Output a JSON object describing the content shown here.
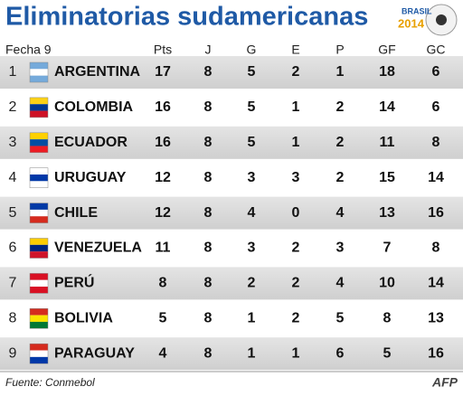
{
  "title": "Eliminatorias sudamericanas",
  "logo": {
    "line1": "BRASIL",
    "line2": "2014"
  },
  "table": {
    "round": "Fecha 9",
    "columns": [
      "Pts",
      "J",
      "G",
      "E",
      "P",
      "GF",
      "GC"
    ],
    "rows": [
      {
        "rank": 1,
        "team": "ARGENTINA",
        "stats": [
          17,
          8,
          5,
          2,
          1,
          18,
          6
        ]
      },
      {
        "rank": 2,
        "team": "COLOMBIA",
        "stats": [
          16,
          8,
          5,
          1,
          2,
          14,
          6
        ]
      },
      {
        "rank": 3,
        "team": "ECUADOR",
        "stats": [
          16,
          8,
          5,
          1,
          2,
          11,
          8
        ]
      },
      {
        "rank": 4,
        "team": "URUGUAY",
        "stats": [
          12,
          8,
          3,
          3,
          2,
          15,
          14
        ]
      },
      {
        "rank": 5,
        "team": "CHILE",
        "stats": [
          12,
          8,
          4,
          0,
          4,
          13,
          16
        ]
      },
      {
        "rank": 6,
        "team": "VENEZUELA",
        "stats": [
          11,
          8,
          3,
          2,
          3,
          7,
          8
        ]
      },
      {
        "rank": 7,
        "team": "PERÚ",
        "stats": [
          8,
          8,
          2,
          2,
          4,
          10,
          14
        ]
      },
      {
        "rank": 8,
        "team": "BOLIVIA",
        "stats": [
          5,
          8,
          1,
          2,
          5,
          8,
          13
        ]
      },
      {
        "rank": 9,
        "team": "PARAGUAY",
        "stats": [
          4,
          8,
          1,
          1,
          6,
          5,
          16
        ]
      }
    ]
  },
  "footer": {
    "source": "Fuente: Conmebol",
    "agency": "AFP"
  }
}
